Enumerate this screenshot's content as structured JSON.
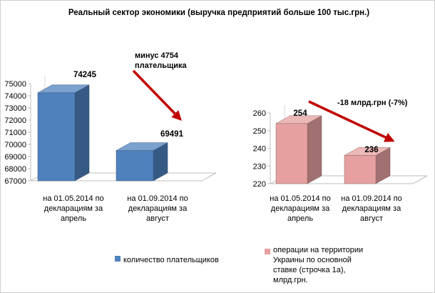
{
  "page_title": "Реальный сектор экономики (выручка предприятий больше 100 тыс.грн.)",
  "chart_data": [
    {
      "type": "bar",
      "categories": [
        "на 01.05.2014 по декларациям за апрель",
        "на 01.09.2014 по декларациям за август"
      ],
      "category_lines": [
        [
          "на 01.05.2014 по",
          "декларациям за",
          "апрель"
        ],
        [
          "на 01.09.2014 по",
          "декларациям за",
          "август"
        ]
      ],
      "series": [
        {
          "name": "количество плательщиков",
          "values": [
            74245,
            69491
          ]
        }
      ],
      "value_labels": [
        "74245",
        "69491"
      ],
      "ylim": [
        67000,
        75000
      ],
      "yticks": [
        67000,
        68000,
        69000,
        70000,
        71000,
        72000,
        73000,
        74000,
        75000
      ],
      "ytick_labels": [
        "67000",
        "68000",
        "69000",
        "70000",
        "71000",
        "72000",
        "73000",
        "74000",
        "75000"
      ],
      "color": "#4f81bd",
      "annotation_lines": [
        "минус 4754",
        "плательщика"
      ],
      "legend_lines": [
        "количество плательщиков"
      ],
      "grid": false,
      "legend_position": "bottom"
    },
    {
      "type": "bar",
      "categories": [
        "на 01.05.2014 по декларациям за апрель",
        "на 01.09.2014 по декларациям за август"
      ],
      "category_lines": [
        [
          "на 01.05.2014 по",
          "декларациям за",
          "апрель"
        ],
        [
          "на 01.09.2014 по",
          "декларациям за",
          "август"
        ]
      ],
      "series": [
        {
          "name": "операции на территории Украины по основной ставке (строчка 1а), млрд.грн.",
          "values": [
            254,
            236
          ]
        }
      ],
      "value_labels": [
        "254",
        "236"
      ],
      "ylim": [
        220,
        260
      ],
      "yticks": [
        220,
        230,
        240,
        250,
        260
      ],
      "ytick_labels": [
        "220",
        "230",
        "240",
        "250",
        "260"
      ],
      "color": "#e6a0a0",
      "annotation_lines": [
        "-18 млрд.грн (-7%)"
      ],
      "legend_lines": [
        "операции на территории",
        "Украины по основной",
        "ставке (строчка 1а),",
        "млрд.грн."
      ],
      "grid": false,
      "legend_position": "bottom"
    }
  ]
}
